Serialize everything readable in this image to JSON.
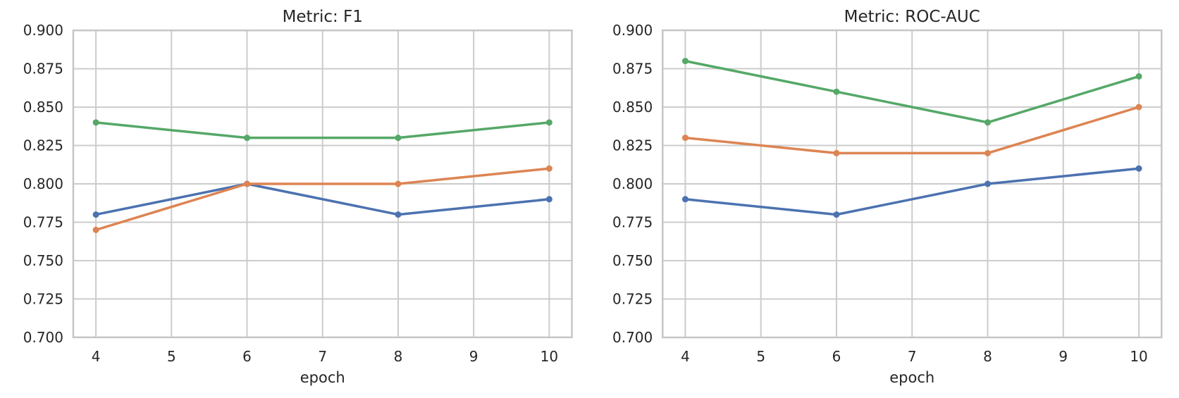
{
  "figure": {
    "background": "#ffffff",
    "text_color": "#262626",
    "grid_color": "#cccccc",
    "spine_color": "#c6c6c6"
  },
  "chart_data": [
    {
      "type": "line",
      "title": "Metric: F1",
      "xlabel": "epoch",
      "ylabel": "",
      "x": [
        4,
        6,
        8,
        10
      ],
      "xticks": [
        4,
        5,
        6,
        7,
        8,
        9,
        10
      ],
      "ytick_labels": [
        "0.700",
        "0.725",
        "0.750",
        "0.775",
        "0.800",
        "0.825",
        "0.850",
        "0.875",
        "0.900"
      ],
      "xlim": [
        3.7,
        10.3
      ],
      "ylim": [
        0.7,
        0.9
      ],
      "grid": true,
      "legend_position": "none",
      "marker": "circle",
      "series": [
        {
          "name": "blue-line",
          "color": "#4C72B0",
          "values": [
            0.78,
            0.8,
            0.78,
            0.79
          ]
        },
        {
          "name": "orange-line",
          "color": "#DD8452",
          "values": [
            0.77,
            0.8,
            0.8,
            0.81
          ]
        },
        {
          "name": "green-line",
          "color": "#55A868",
          "values": [
            0.84,
            0.83,
            0.83,
            0.84
          ]
        }
      ]
    },
    {
      "type": "line",
      "title": "Metric: ROC-AUC",
      "xlabel": "epoch",
      "ylabel": "",
      "x": [
        4,
        6,
        8,
        10
      ],
      "xticks": [
        4,
        5,
        6,
        7,
        8,
        9,
        10
      ],
      "ytick_labels": [
        "0.700",
        "0.725",
        "0.750",
        "0.775",
        "0.800",
        "0.825",
        "0.850",
        "0.875",
        "0.900"
      ],
      "xlim": [
        3.7,
        10.3
      ],
      "ylim": [
        0.7,
        0.9
      ],
      "grid": true,
      "legend_position": "none",
      "marker": "circle",
      "series": [
        {
          "name": "blue-line",
          "color": "#4C72B0",
          "values": [
            0.79,
            0.78,
            0.8,
            0.81
          ]
        },
        {
          "name": "orange-line",
          "color": "#DD8452",
          "values": [
            0.83,
            0.82,
            0.82,
            0.85
          ]
        },
        {
          "name": "green-line",
          "color": "#55A868",
          "values": [
            0.88,
            0.86,
            0.84,
            0.87
          ]
        }
      ]
    }
  ]
}
